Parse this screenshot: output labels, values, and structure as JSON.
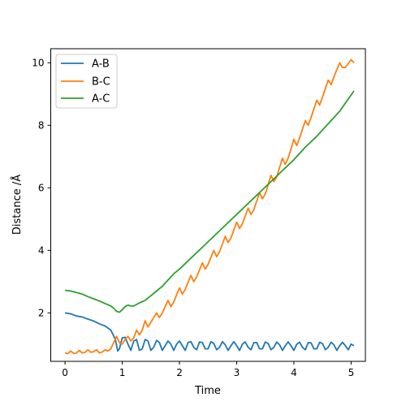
{
  "chart_data": {
    "type": "line",
    "title": "",
    "xlabel": "Time",
    "ylabel": "Distance /Å",
    "xlim": [
      -0.25,
      5.25
    ],
    "ylim": [
      0.45,
      10.45
    ],
    "xticks": [
      0,
      1,
      2,
      3,
      4,
      5
    ],
    "yticks": [
      2,
      4,
      6,
      8,
      10
    ],
    "grid": false,
    "legend_position": "top-left",
    "series": [
      {
        "name": "A-B",
        "color": "#1f77b4",
        "x": [
          0.0,
          0.1,
          0.2,
          0.3,
          0.4,
          0.5,
          0.6,
          0.7,
          0.8,
          0.88,
          0.92,
          0.95,
          1.0,
          1.05,
          1.1,
          1.15,
          1.2,
          1.25,
          1.3,
          1.35,
          1.4,
          1.45,
          1.5,
          1.55,
          1.6,
          1.65,
          1.7,
          1.75,
          1.8,
          1.85,
          1.9,
          1.95,
          2.0,
          2.05,
          2.1,
          2.15,
          2.2,
          2.25,
          2.3,
          2.35,
          2.4,
          2.45,
          2.5,
          2.55,
          2.6,
          2.65,
          2.7,
          2.75,
          2.8,
          2.85,
          2.9,
          2.95,
          3.0,
          3.05,
          3.1,
          3.15,
          3.2,
          3.25,
          3.3,
          3.35,
          3.4,
          3.45,
          3.5,
          3.55,
          3.6,
          3.65,
          3.7,
          3.75,
          3.8,
          3.85,
          3.9,
          3.95,
          4.0,
          4.05,
          4.1,
          4.15,
          4.2,
          4.25,
          4.3,
          4.35,
          4.4,
          4.45,
          4.5,
          4.55,
          4.6,
          4.65,
          4.7,
          4.75,
          4.8,
          4.85,
          4.9,
          4.95,
          5.0,
          5.05
        ],
        "y": [
          2.0,
          1.97,
          1.9,
          1.87,
          1.8,
          1.74,
          1.65,
          1.58,
          1.45,
          1.15,
          0.78,
          0.85,
          1.2,
          1.22,
          1.0,
          0.8,
          1.1,
          1.15,
          0.8,
          0.85,
          1.15,
          1.1,
          0.8,
          0.9,
          1.12,
          1.05,
          0.8,
          0.95,
          1.1,
          1.0,
          0.8,
          1.0,
          1.1,
          0.95,
          0.8,
          1.05,
          1.08,
          0.9,
          0.82,
          1.07,
          1.05,
          0.85,
          0.85,
          1.08,
          1.02,
          0.82,
          0.9,
          1.08,
          0.98,
          0.8,
          0.95,
          1.08,
          0.95,
          0.8,
          1.0,
          1.07,
          0.9,
          0.82,
          1.05,
          1.05,
          0.85,
          0.85,
          1.07,
          1.02,
          0.82,
          0.9,
          1.07,
          0.98,
          0.8,
          0.95,
          1.07,
          0.95,
          0.8,
          1.0,
          1.06,
          0.9,
          0.82,
          1.05,
          1.04,
          0.85,
          0.85,
          1.06,
          1.02,
          0.82,
          0.9,
          1.06,
          0.98,
          0.8,
          0.95,
          1.06,
          0.95,
          0.82,
          1.0,
          0.95
        ]
      },
      {
        "name": "B-C",
        "color": "#ff7f0e",
        "x": [
          0.0,
          0.05,
          0.1,
          0.15,
          0.2,
          0.25,
          0.3,
          0.35,
          0.4,
          0.45,
          0.5,
          0.55,
          0.6,
          0.65,
          0.7,
          0.75,
          0.8,
          0.85,
          0.9,
          0.95,
          1.0,
          1.05,
          1.1,
          1.15,
          1.2,
          1.25,
          1.3,
          1.35,
          1.4,
          1.45,
          1.5,
          1.6,
          1.65,
          1.7,
          1.8,
          1.85,
          1.9,
          2.0,
          2.05,
          2.1,
          2.2,
          2.25,
          2.3,
          2.4,
          2.45,
          2.5,
          2.6,
          2.65,
          2.7,
          2.8,
          2.85,
          2.9,
          3.0,
          3.05,
          3.1,
          3.2,
          3.25,
          3.3,
          3.4,
          3.45,
          3.5,
          3.6,
          3.65,
          3.7,
          3.8,
          3.85,
          3.9,
          4.0,
          4.05,
          4.1,
          4.2,
          4.25,
          4.3,
          4.4,
          4.45,
          4.5,
          4.6,
          4.65,
          4.7,
          4.8,
          4.85,
          4.9,
          5.0,
          5.05
        ],
        "y": [
          0.72,
          0.7,
          0.78,
          0.7,
          0.72,
          0.8,
          0.72,
          0.74,
          0.82,
          0.74,
          0.76,
          0.82,
          0.72,
          0.75,
          0.82,
          0.78,
          0.85,
          1.05,
          1.25,
          1.05,
          1.0,
          1.15,
          1.25,
          1.1,
          1.2,
          1.45,
          1.3,
          1.45,
          1.75,
          1.55,
          1.7,
          2.0,
          1.85,
          2.0,
          2.4,
          2.2,
          2.35,
          2.8,
          2.6,
          2.75,
          3.2,
          3.0,
          3.15,
          3.6,
          3.4,
          3.55,
          4.0,
          3.8,
          3.95,
          4.45,
          4.25,
          4.4,
          4.9,
          4.7,
          4.85,
          5.35,
          5.15,
          5.3,
          5.85,
          5.65,
          5.8,
          6.4,
          6.2,
          6.35,
          6.95,
          6.75,
          6.95,
          7.55,
          7.35,
          7.6,
          8.15,
          8.0,
          8.25,
          8.8,
          8.65,
          8.9,
          9.45,
          9.3,
          9.55,
          10.0,
          9.85,
          9.85,
          10.1,
          10.0
        ]
      },
      {
        "name": "A-C",
        "color": "#2ca02c",
        "x": [
          0.0,
          0.1,
          0.2,
          0.3,
          0.4,
          0.5,
          0.6,
          0.7,
          0.8,
          0.85,
          0.9,
          0.95,
          1.0,
          1.05,
          1.1,
          1.15,
          1.2,
          1.3,
          1.4,
          1.5,
          1.6,
          1.7,
          1.8,
          1.9,
          2.0,
          2.2,
          2.4,
          2.6,
          2.8,
          3.0,
          3.2,
          3.4,
          3.6,
          3.8,
          4.0,
          4.2,
          4.4,
          4.6,
          4.8,
          5.05
        ],
        "y": [
          2.72,
          2.7,
          2.65,
          2.6,
          2.52,
          2.45,
          2.38,
          2.3,
          2.22,
          2.15,
          2.05,
          2.02,
          2.1,
          2.2,
          2.25,
          2.22,
          2.22,
          2.32,
          2.4,
          2.55,
          2.7,
          2.85,
          3.05,
          3.25,
          3.4,
          3.75,
          4.1,
          4.45,
          4.8,
          5.15,
          5.5,
          5.85,
          6.2,
          6.55,
          6.9,
          7.3,
          7.65,
          8.05,
          8.45,
          9.1
        ]
      }
    ]
  }
}
